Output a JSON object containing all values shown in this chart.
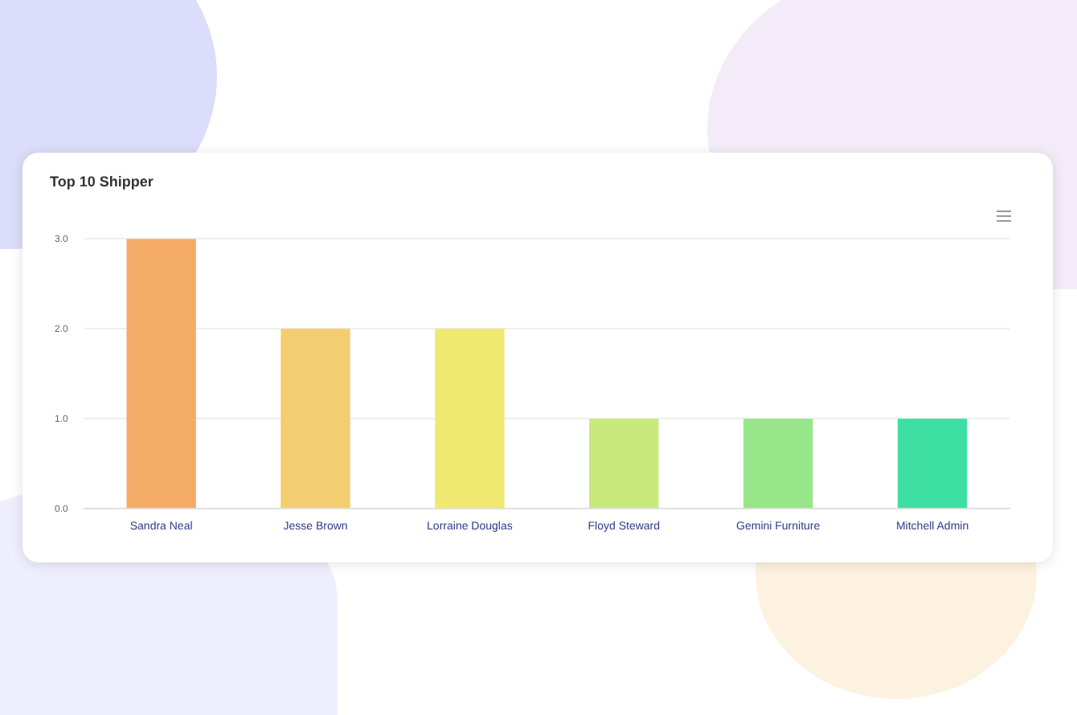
{
  "chart_data": {
    "type": "bar",
    "title": "Top 10 Shipper",
    "categories": [
      "Sandra Neal",
      "Jesse Brown",
      "Lorraine Douglas",
      "Floyd Steward",
      "Gemini Furniture",
      "Mitchell Admin"
    ],
    "values": [
      3,
      2,
      2,
      1,
      1,
      1
    ],
    "colors": [
      "#f5ab68",
      "#f4cd70",
      "#f0e870",
      "#c8e97c",
      "#97e68a",
      "#3ddfa3"
    ],
    "ylim": [
      0,
      3
    ],
    "yticks": [
      {
        "value": 0,
        "label": "0.0"
      },
      {
        "value": 1,
        "label": "1.0"
      },
      {
        "value": 2,
        "label": "2.0"
      },
      {
        "value": 3,
        "label": "3.0"
      }
    ],
    "grid": "y"
  }
}
